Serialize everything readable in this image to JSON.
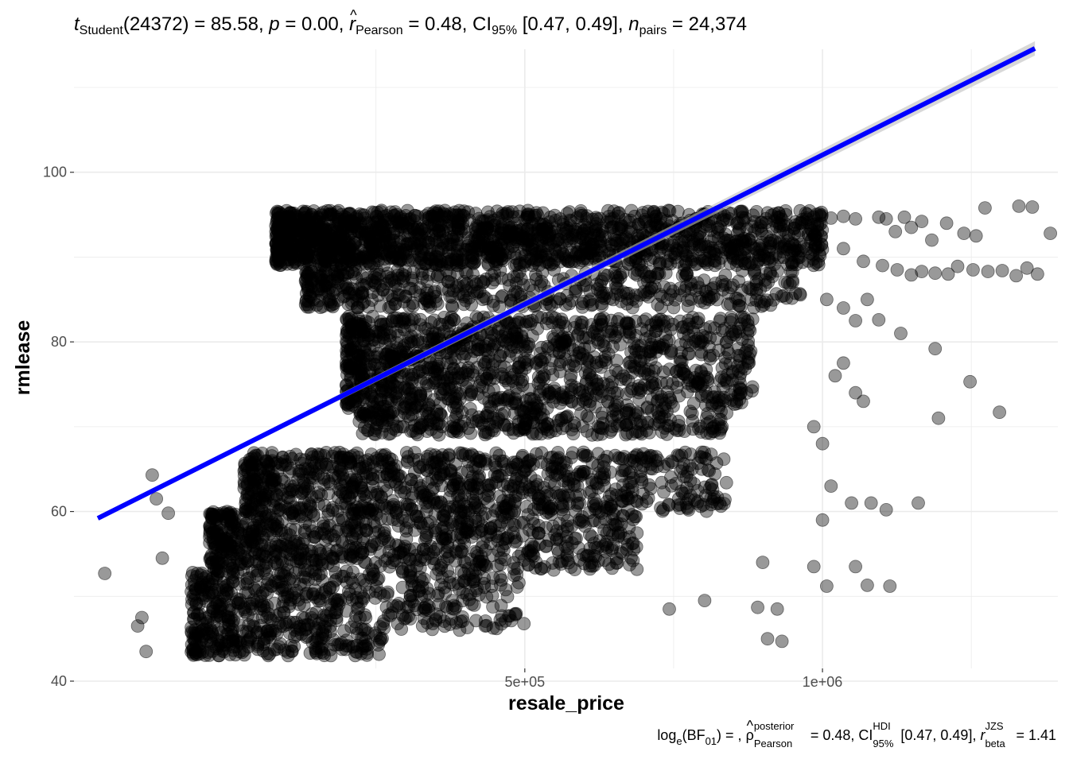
{
  "subtitle": {
    "t_letter": "t",
    "t_sub": "Student",
    "df_value": "(24372) = 85.58, ",
    "p_letter": "p",
    "p_value": " = 0.00, ",
    "r_letter": "r",
    "r_sub": "Pearson",
    "r_value": " = 0.48, CI",
    "ci_sub": "95%",
    "ci_value": " [0.47, 0.49], ",
    "n_letter": "n",
    "n_sub": "pairs",
    "n_value": " = 24,374"
  },
  "caption": {
    "log_text": "log",
    "log_sub": "e",
    "bf_open": "(BF",
    "bf_sub": "01",
    "bf_close": ") = , ",
    "rho_glyph": "ρ",
    "rho_sup": "posterior",
    "rho_sub": "Pearson",
    "rho_value": " = 0.48, CI",
    "ci_sup": "HDI",
    "ci_sub": "95%",
    "ci_value": " [0.47, 0.49], ",
    "r_letter": "r",
    "r_sup": "JZS",
    "r_sub": "beta",
    "r_value": " = 1.41"
  },
  "colors": {
    "point_fill": "#000000",
    "point_opacity": 0.4,
    "fit_line": "#0000ff",
    "ci_band": "#bebebe",
    "grid": "#ebebeb"
  },
  "chart_data": {
    "type": "scatter",
    "title": "",
    "xlabel": "resale_price",
    "ylabel": "rmlease",
    "x_scale": "log10",
    "xlim": [
      175000,
      1730000
    ],
    "ylim": [
      41.5,
      114.5
    ],
    "x_ticks": [
      {
        "value": 500000,
        "label": "5e+05"
      },
      {
        "value": 1000000,
        "label": "1e+06"
      }
    ],
    "y_ticks": [
      {
        "value": 40,
        "label": "40"
      },
      {
        "value": 60,
        "label": "60"
      },
      {
        "value": 80,
        "label": "80"
      },
      {
        "value": 100,
        "label": "100"
      }
    ],
    "grid": true,
    "legend": "none",
    "fit": {
      "type": "linear",
      "x_start": 185000,
      "y_start": 59.2,
      "x_end": 1640000,
      "y_end": 114.6
    },
    "clusters": [
      {
        "x_range": [
          280000,
          1000000
        ],
        "y_range": [
          89,
          95.5
        ],
        "n": 1700
      },
      {
        "x_range": [
          300000,
          950000
        ],
        "y_range": [
          84,
          88.5
        ],
        "n": 500
      },
      {
        "x_range": [
          330000,
          850000
        ],
        "y_range": [
          72,
          83
        ],
        "n": 1200
      },
      {
        "x_range": [
          340000,
          800000
        ],
        "y_range": [
          69,
          72
        ],
        "n": 300
      },
      {
        "x_range": [
          260000,
          800000
        ],
        "y_range": [
          60,
          67
        ],
        "n": 900
      },
      {
        "x_range": [
          240000,
          650000
        ],
        "y_range": [
          53,
          60
        ],
        "n": 800
      },
      {
        "x_range": [
          230000,
          500000
        ],
        "y_range": [
          46,
          53
        ],
        "n": 500
      },
      {
        "x_range": [
          230000,
          360000
        ],
        "y_range": [
          43,
          46
        ],
        "n": 200
      }
    ],
    "points": [
      [
        188000,
        52.7
      ],
      [
        210000,
        64.3
      ],
      [
        212000,
        61.5
      ],
      [
        205000,
        47.5
      ],
      [
        203000,
        46.5
      ],
      [
        207000,
        43.5
      ],
      [
        218000,
        59.8
      ],
      [
        215000,
        54.5
      ],
      [
        1020000,
        94.6
      ],
      [
        1050000,
        94.8
      ],
      [
        1080000,
        94.5
      ],
      [
        1140000,
        94.7
      ],
      [
        1160000,
        94.5
      ],
      [
        1185000,
        93.0
      ],
      [
        1210000,
        94.7
      ],
      [
        1230000,
        93.5
      ],
      [
        1260000,
        94.2
      ],
      [
        1290000,
        92.0
      ],
      [
        1335000,
        94.0
      ],
      [
        1390000,
        92.8
      ],
      [
        1430000,
        92.5
      ],
      [
        1460000,
        95.8
      ],
      [
        1580000,
        96.0
      ],
      [
        1630000,
        95.9
      ],
      [
        1700000,
        92.8
      ],
      [
        1050000,
        91.0
      ],
      [
        1100000,
        89.5
      ],
      [
        1150000,
        89.0
      ],
      [
        1190000,
        88.5
      ],
      [
        1230000,
        87.9
      ],
      [
        1260000,
        88.3
      ],
      [
        1300000,
        88.1
      ],
      [
        1340000,
        88.0
      ],
      [
        1370000,
        88.9
      ],
      [
        1420000,
        88.5
      ],
      [
        1470000,
        88.3
      ],
      [
        1520000,
        88.4
      ],
      [
        1570000,
        87.8
      ],
      [
        1610000,
        88.7
      ],
      [
        1650000,
        88.0
      ],
      [
        1010000,
        85.0
      ],
      [
        1050000,
        84.0
      ],
      [
        1080000,
        82.5
      ],
      [
        1110000,
        85.0
      ],
      [
        1140000,
        82.6
      ],
      [
        1200000,
        81.0
      ],
      [
        1300000,
        79.2
      ],
      [
        1050000,
        77.5
      ],
      [
        1030000,
        76.0
      ],
      [
        1080000,
        74.0
      ],
      [
        1100000,
        73.0
      ],
      [
        1410000,
        75.3
      ],
      [
        1310000,
        71.0
      ],
      [
        1510000,
        71.7
      ],
      [
        1000000,
        68.0
      ],
      [
        980000,
        70.0
      ],
      [
        1020000,
        63.0
      ],
      [
        1070000,
        61.0
      ],
      [
        1120000,
        61.0
      ],
      [
        1160000,
        60.2
      ],
      [
        1250000,
        61.0
      ],
      [
        1000000,
        59.0
      ],
      [
        980000,
        53.5
      ],
      [
        1010000,
        51.2
      ],
      [
        1080000,
        53.5
      ],
      [
        1110000,
        51.3
      ],
      [
        1170000,
        51.2
      ],
      [
        860000,
        48.7
      ],
      [
        900000,
        48.5
      ],
      [
        880000,
        45.0
      ],
      [
        910000,
        44.7
      ],
      [
        870000,
        54.0
      ],
      [
        760000,
        49.5
      ],
      [
        700000,
        48.5
      ]
    ]
  }
}
